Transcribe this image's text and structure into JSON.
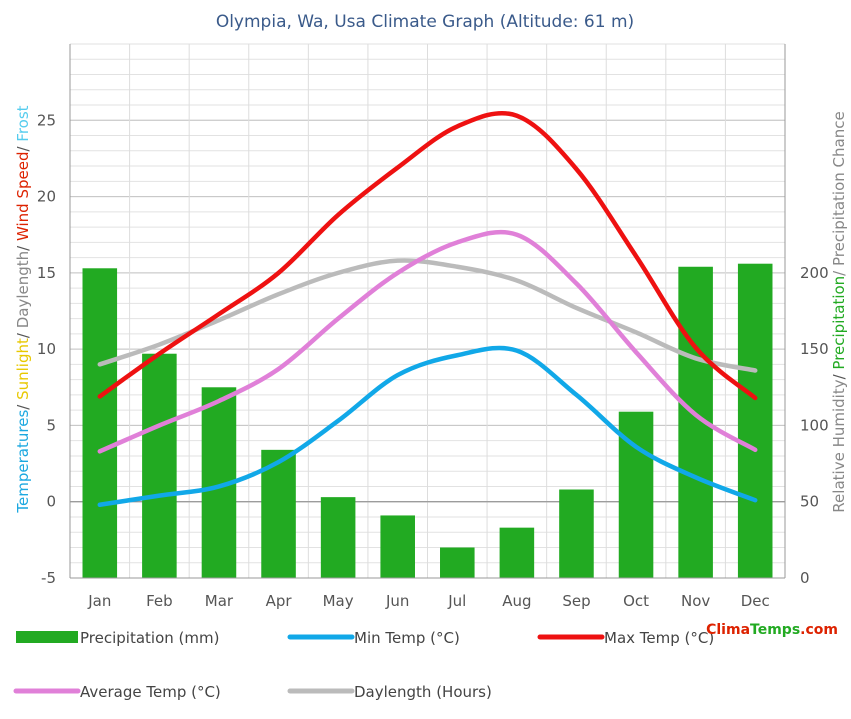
{
  "chart_data": {
    "type": "bar+line",
    "title": "Olympia, Wa, Usa Climate Graph (Altitude: 61 m)",
    "categories": [
      "Jan",
      "Feb",
      "Mar",
      "Apr",
      "May",
      "Jun",
      "Jul",
      "Aug",
      "Sep",
      "Oct",
      "Nov",
      "Dec"
    ],
    "y_left": {
      "range": [
        -5,
        30
      ],
      "ticks": [
        -5,
        0,
        5,
        10,
        15,
        20,
        25
      ],
      "label_parts": [
        {
          "text": "Temperatures",
          "color": "#1ca8e0"
        },
        {
          "text": "/ ",
          "color": "#555555"
        },
        {
          "text": "Sunlight",
          "color": "#e8c800"
        },
        {
          "text": "/ ",
          "color": "#555555"
        },
        {
          "text": "Daylength",
          "color": "#888888"
        },
        {
          "text": "/ ",
          "color": "#555555"
        },
        {
          "text": "Wind Speed",
          "color": "#dd2200"
        },
        {
          "text": "/ ",
          "color": "#555555"
        },
        {
          "text": "Frost",
          "color": "#55ccee"
        }
      ]
    },
    "y_right": {
      "range": [
        0,
        350
      ],
      "ticks": [
        0,
        50,
        100,
        150,
        200
      ],
      "label_parts": [
        {
          "text": "Relative Humidity",
          "color": "#888888"
        },
        {
          "text": "/ ",
          "color": "#555555"
        },
        {
          "text": "Precipitation",
          "color": "#22aa22"
        },
        {
          "text": "/ Precipitation Chance",
          "color": "#888888"
        }
      ]
    },
    "series": [
      {
        "name": "Precipitation (mm)",
        "kind": "bar",
        "axis": "right",
        "color": "#22aa22",
        "values": [
          203,
          147,
          125,
          84,
          53,
          41,
          20,
          33,
          58,
          109,
          204,
          206
        ]
      },
      {
        "name": "Min Temp (°C)",
        "kind": "line",
        "axis": "left",
        "color": "#11a8e8",
        "values": [
          -0.2,
          0.4,
          1.0,
          2.6,
          5.3,
          8.3,
          9.6,
          9.9,
          7.0,
          3.6,
          1.6,
          0.1
        ]
      },
      {
        "name": "Max Temp (°C)",
        "kind": "line",
        "axis": "left",
        "color": "#ee1111",
        "values": [
          6.9,
          9.7,
          12.3,
          15.0,
          18.8,
          21.9,
          24.6,
          25.3,
          21.8,
          16.1,
          10.1,
          6.8
        ]
      },
      {
        "name": "Average Temp (°C)",
        "kind": "line",
        "axis": "left",
        "color": "#e080d8",
        "values": [
          3.3,
          5.0,
          6.6,
          8.7,
          12.0,
          15.0,
          17.0,
          17.5,
          14.3,
          9.8,
          5.7,
          3.4
        ]
      },
      {
        "name": "Daylength (Hours)",
        "kind": "line",
        "axis": "left",
        "color": "#bbbbbb",
        "values": [
          9.0,
          10.3,
          11.9,
          13.6,
          15.0,
          15.8,
          15.4,
          14.5,
          12.7,
          11.1,
          9.4,
          8.6
        ]
      }
    ],
    "legend": [
      {
        "label": "Precipitation (mm)",
        "color": "#22aa22",
        "kind": "bar"
      },
      {
        "label": "Min Temp (°C)",
        "color": "#11a8e8",
        "kind": "line"
      },
      {
        "label": "Max Temp (°C)",
        "color": "#ee1111",
        "kind": "line"
      },
      {
        "label": "Average Temp (°C)",
        "color": "#e080d8",
        "kind": "line"
      },
      {
        "label": "Daylength (Hours)",
        "color": "#bbbbbb",
        "kind": "line"
      }
    ],
    "brand": {
      "part1": "Clima",
      "part2": "Temps",
      "part3": ".com",
      "color1": "#dd2200",
      "color2": "#22aa22"
    }
  }
}
